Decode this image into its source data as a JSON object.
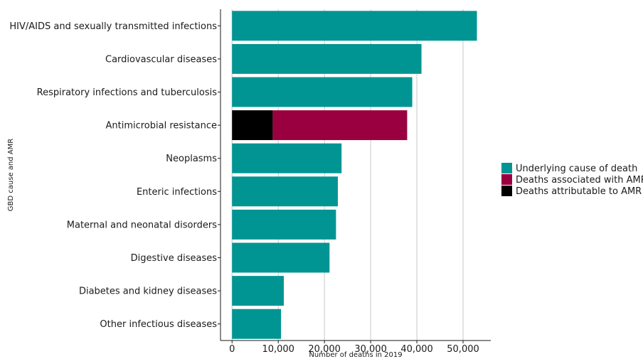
{
  "chart_data": {
    "type": "bar",
    "orientation": "horizontal",
    "stacked": true,
    "categories": [
      "HIV/AIDS and sexually transmitted infections",
      "Cardiovascular diseases",
      "Respiratory infections and tuberculosis",
      "Antimicrobial resistance",
      "Neoplasms",
      "Enteric infections",
      "Maternal and neonatal disorders",
      "Digestive diseases",
      "Diabetes and kidney diseases",
      "Other infectious diseases"
    ],
    "series": [
      {
        "name": "Underlying cause of death",
        "color": "#009593",
        "values": [
          53000,
          41000,
          39000,
          0,
          23700,
          22900,
          22500,
          21100,
          11200,
          10600
        ]
      },
      {
        "name": "Deaths attributable to AMR",
        "color": "#000000",
        "values": [
          0,
          0,
          0,
          8800,
          0,
          0,
          0,
          0,
          0,
          0
        ]
      },
      {
        "name": "Deaths associated with AMR",
        "color": "#9a0040",
        "values": [
          0,
          0,
          0,
          29100,
          0,
          0,
          0,
          0,
          0,
          0
        ]
      }
    ],
    "legend_order": [
      "Underlying cause of death",
      "Deaths associated with AMR",
      "Deaths attributable to AMR"
    ],
    "xlabel": "Number of deaths in 2019",
    "ylabel": "GBD cause and AMR",
    "xticks": [
      0,
      10000,
      20000,
      30000,
      40000,
      50000
    ],
    "xtick_labels": [
      "0",
      "10,000",
      "20,000",
      "30,000",
      "40,000",
      "50,000"
    ],
    "xlim": [
      -2500,
      56000
    ],
    "grid": "vertical major",
    "legend_position": "right"
  }
}
